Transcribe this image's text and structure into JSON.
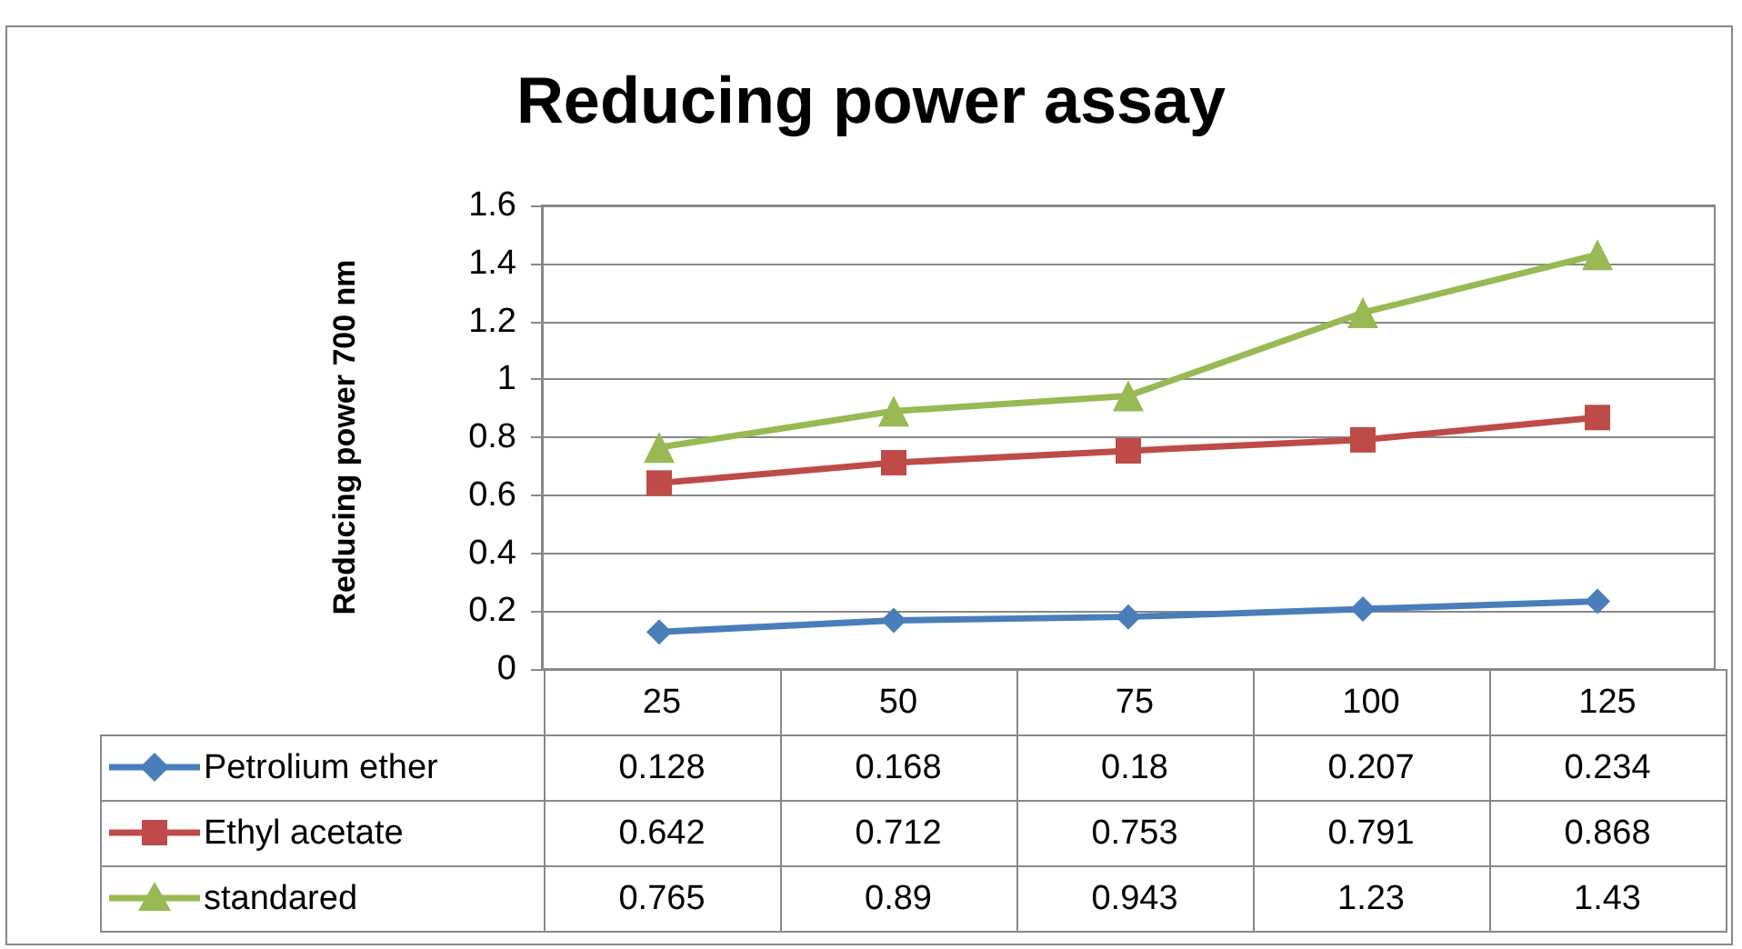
{
  "chart_data": {
    "type": "line",
    "title": "Reducing power assay",
    "ylabel": "Reducing power 700 nm",
    "categories": [
      "25",
      "50",
      "75",
      "100",
      "125"
    ],
    "series": [
      {
        "name": "Petrolium ether",
        "color": "#4a7ebb",
        "marker": "diamond",
        "values": [
          0.128,
          0.168,
          0.18,
          0.207,
          0.234
        ]
      },
      {
        "name": "Ethyl acetate",
        "color": "#be4b48",
        "marker": "square",
        "values": [
          0.642,
          0.712,
          0.753,
          0.791,
          0.868
        ]
      },
      {
        "name": "standared",
        "color": "#98b954",
        "marker": "triangle",
        "values": [
          0.765,
          0.89,
          0.943,
          1.23,
          1.43
        ]
      }
    ],
    "ylim": [
      0,
      1.6
    ],
    "yticks": [
      0,
      0.2,
      0.4,
      0.6,
      0.8,
      1,
      1.2,
      1.4,
      1.6
    ],
    "grid": "y",
    "legend": "bottom",
    "data_labels": true
  }
}
